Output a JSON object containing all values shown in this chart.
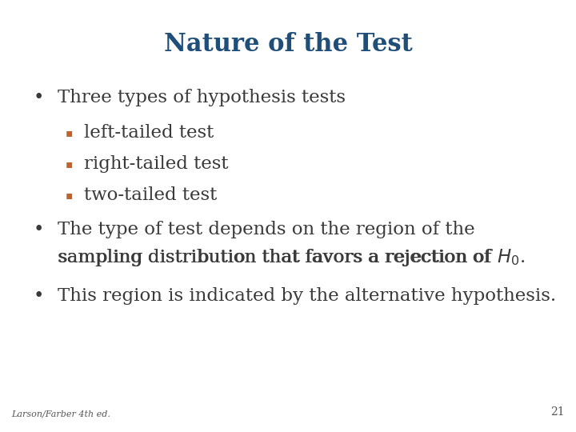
{
  "title": "Nature of the Test",
  "title_color": "#1F4E79",
  "title_fontsize": 22,
  "background_color": "#FFFFFF",
  "bullet_color": "#3A3A3A",
  "bullet_symbol": "•",
  "sub_bullet_color": "#C0622D",
  "main_bullet_fontsize": 16.5,
  "sub_bullet_fontsize": 16.5,
  "footer_text": "Larson/Farber 4th ed.",
  "page_number": "21",
  "footer_fontsize": 8
}
